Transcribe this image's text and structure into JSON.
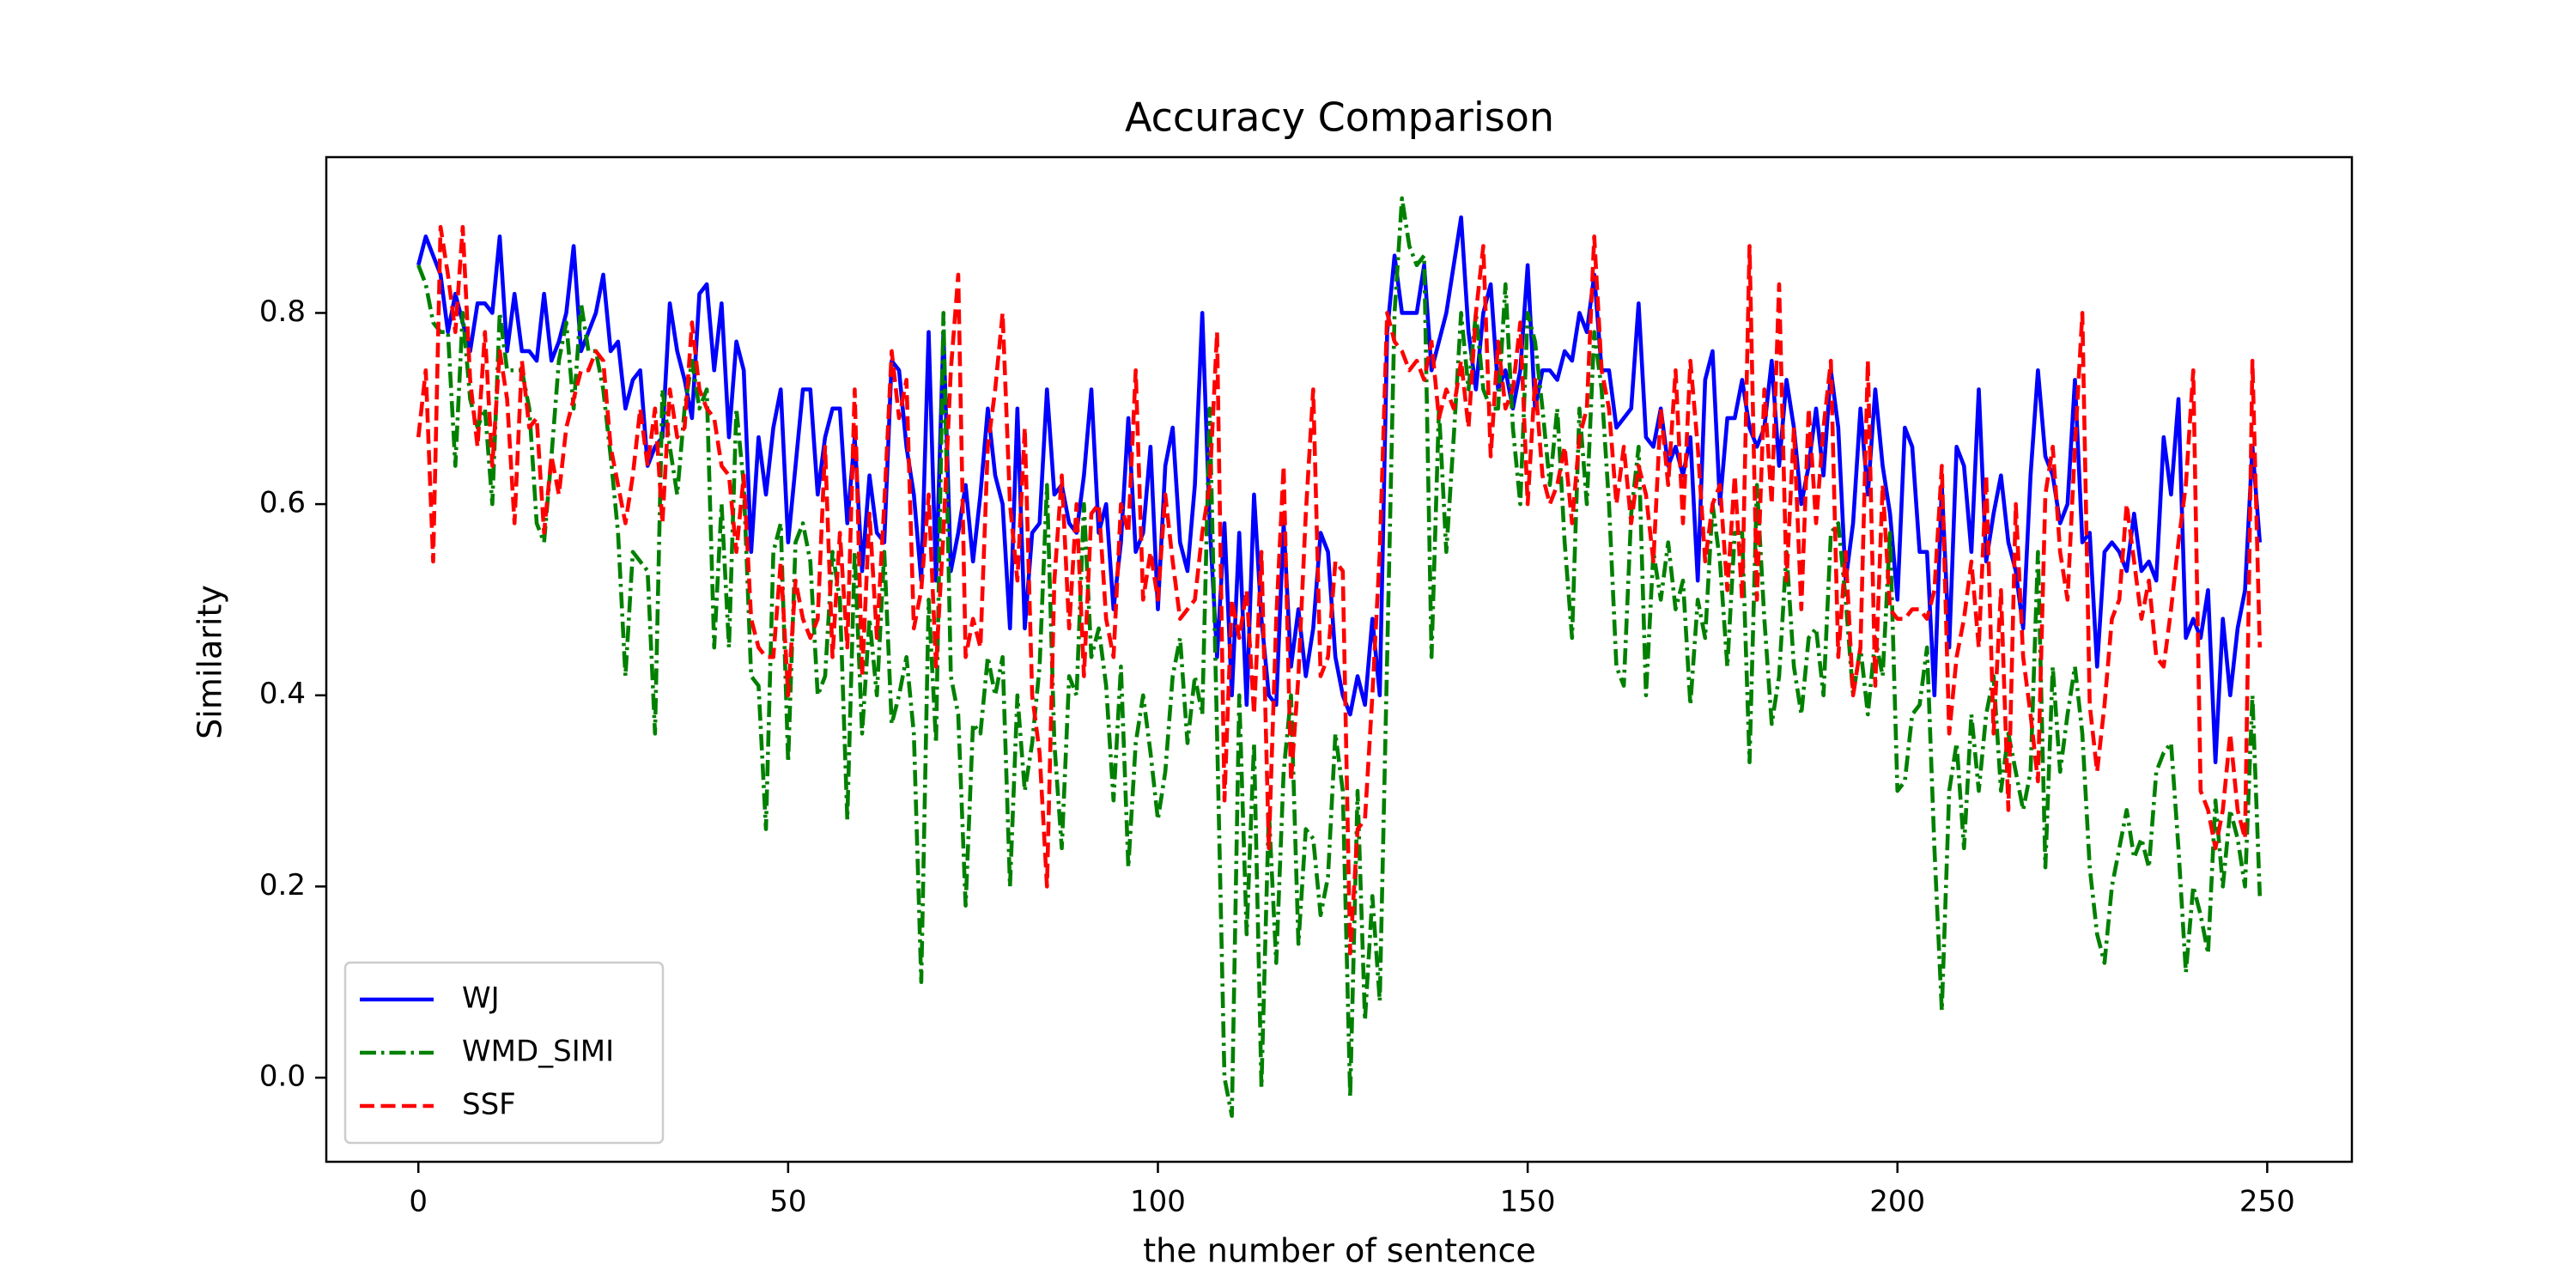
{
  "chart_data": {
    "type": "line",
    "title": "Accuracy Comparison",
    "x_label": "the number of sentence",
    "y_label": "Similarity",
    "xlim": [
      -12.45,
      261.45
    ],
    "ylim": [
      -0.088,
      0.963
    ],
    "xticks": [
      0,
      50,
      100,
      150,
      200,
      250
    ],
    "yticks": [
      {
        "value": 0,
        "label": "0.0"
      },
      0.2,
      0.4,
      0.6,
      0.8
    ],
    "legend": "lower left",
    "x": [
      0,
      1,
      2,
      3,
      4,
      5,
      6,
      7,
      8,
      9,
      10,
      11,
      12,
      13,
      14,
      15,
      16,
      17,
      18,
      19,
      20,
      21,
      22,
      23,
      24,
      25,
      26,
      27,
      28,
      29,
      30,
      31,
      32,
      33,
      34,
      35,
      36,
      37,
      38,
      39,
      40,
      41,
      42,
      43,
      44,
      45,
      46,
      47,
      48,
      49,
      50,
      51,
      52,
      53,
      54,
      55,
      56,
      57,
      58,
      59,
      60,
      61,
      62,
      63,
      64,
      65,
      66,
      67,
      68,
      69,
      70,
      71,
      72,
      73,
      74,
      75,
      76,
      77,
      78,
      79,
      80,
      81,
      82,
      83,
      84,
      85,
      86,
      87,
      88,
      89,
      90,
      91,
      92,
      93,
      94,
      95,
      96,
      97,
      98,
      99,
      100,
      101,
      102,
      103,
      104,
      105,
      106,
      107,
      108,
      109,
      110,
      111,
      112,
      113,
      114,
      115,
      116,
      117,
      118,
      119,
      120,
      121,
      122,
      123,
      124,
      125,
      126,
      127,
      128,
      129,
      130,
      131,
      132,
      133,
      134,
      135,
      136,
      137,
      138,
      139,
      140,
      141,
      142,
      143,
      144,
      145,
      146,
      147,
      148,
      149,
      150,
      151,
      152,
      153,
      154,
      155,
      156,
      157,
      158,
      159,
      160,
      161,
      162,
      163,
      164,
      165,
      166,
      167,
      168,
      169,
      170,
      171,
      172,
      173,
      174,
      175,
      176,
      177,
      178,
      179,
      180,
      181,
      182,
      183,
      184,
      185,
      186,
      187,
      188,
      189,
      190,
      191,
      192,
      193,
      194,
      195,
      196,
      197,
      198,
      199,
      200,
      201,
      202,
      203,
      204,
      205,
      206,
      207,
      208,
      209,
      210,
      211,
      212,
      213,
      214,
      215,
      216,
      217,
      218,
      219,
      220,
      221,
      222,
      223,
      224,
      225,
      226,
      227,
      228,
      229,
      230,
      231,
      232,
      233,
      234,
      235,
      236,
      237,
      238,
      239,
      240,
      241,
      242,
      243,
      244,
      245,
      246,
      247,
      248,
      249
    ],
    "series": [
      {
        "name": "WJ",
        "color": "#0000ff",
        "linestyle": "solid",
        "values": [
          0.85,
          0.88,
          0.86,
          0.84,
          0.78,
          0.82,
          0.79,
          0.76,
          0.81,
          0.81,
          0.8,
          0.88,
          0.76,
          0.82,
          0.76,
          0.76,
          0.75,
          0.82,
          0.75,
          0.77,
          0.8,
          0.87,
          0.76,
          0.78,
          0.8,
          0.84,
          0.76,
          0.77,
          0.7,
          0.73,
          0.74,
          0.64,
          0.66,
          0.67,
          0.81,
          0.76,
          0.73,
          0.69,
          0.82,
          0.83,
          0.74,
          0.81,
          0.67,
          0.77,
          0.74,
          0.55,
          0.67,
          0.61,
          0.68,
          0.72,
          0.56,
          0.64,
          0.72,
          0.72,
          0.61,
          0.67,
          0.7,
          0.7,
          0.58,
          0.67,
          0.53,
          0.63,
          0.57,
          0.56,
          0.75,
          0.74,
          0.66,
          0.61,
          0.52,
          0.78,
          0.52,
          0.78,
          0.53,
          0.57,
          0.62,
          0.54,
          0.61,
          0.7,
          0.63,
          0.6,
          0.47,
          0.7,
          0.47,
          0.57,
          0.58,
          0.72,
          0.61,
          0.62,
          0.58,
          0.57,
          0.63,
          0.72,
          0.57,
          0.6,
          0.49,
          0.56,
          0.69,
          0.55,
          0.57,
          0.66,
          0.49,
          0.64,
          0.68,
          0.56,
          0.53,
          0.62,
          0.8,
          0.58,
          0.44,
          0.58,
          0.4,
          0.57,
          0.39,
          0.61,
          0.48,
          0.4,
          0.39,
          0.58,
          0.43,
          0.49,
          0.42,
          0.47,
          0.57,
          0.55,
          0.44,
          0.4,
          0.38,
          0.42,
          0.39,
          0.48,
          0.4,
          0.78,
          0.86,
          0.8,
          0.8,
          0.8,
          0.85,
          0.74,
          0.77,
          0.8,
          0.85,
          0.9,
          0.78,
          0.72,
          0.8,
          0.83,
          0.72,
          0.74,
          0.7,
          0.74,
          0.85,
          0.7,
          0.74,
          0.74,
          0.73,
          0.76,
          0.75,
          0.8,
          0.78,
          0.84,
          0.74,
          0.74,
          0.68,
          0.69,
          0.7,
          0.81,
          0.67,
          0.66,
          0.7,
          0.64,
          0.66,
          0.63,
          0.67,
          0.52,
          0.73,
          0.76,
          0.6,
          0.69,
          0.69,
          0.73,
          0.68,
          0.66,
          0.68,
          0.75,
          0.64,
          0.73,
          0.68,
          0.6,
          0.64,
          0.7,
          0.63,
          0.74,
          0.68,
          0.52,
          0.58,
          0.7,
          0.61,
          0.72,
          0.64,
          0.59,
          0.5,
          0.68,
          0.66,
          0.55,
          0.55,
          0.4,
          0.62,
          0.45,
          0.66,
          0.64,
          0.55,
          0.72,
          0.54,
          0.59,
          0.63,
          0.56,
          0.53,
          0.47,
          0.63,
          0.74,
          0.65,
          0.63,
          0.58,
          0.6,
          0.73,
          0.56,
          0.57,
          0.43,
          0.55,
          0.56,
          0.55,
          0.53,
          0.59,
          0.53,
          0.54,
          0.52,
          0.67,
          0.61,
          0.71,
          0.46,
          0.48,
          0.46,
          0.51,
          0.33,
          0.48,
          0.4,
          0.47,
          0.51,
          0.66,
          0.56
        ]
      },
      {
        "name": "WMD_SIMI",
        "color": "#008000",
        "linestyle": "dashdot",
        "values": [
          0.85,
          0.83,
          0.79,
          0.78,
          0.78,
          0.64,
          0.8,
          0.71,
          0.68,
          0.7,
          0.6,
          0.8,
          0.74,
          0.74,
          0.74,
          0.7,
          0.58,
          0.56,
          0.65,
          0.75,
          0.79,
          0.7,
          0.81,
          0.76,
          0.76,
          0.72,
          0.65,
          0.57,
          0.42,
          0.55,
          0.54,
          0.53,
          0.36,
          0.72,
          0.66,
          0.61,
          0.7,
          0.75,
          0.7,
          0.72,
          0.45,
          0.6,
          0.45,
          0.7,
          0.62,
          0.42,
          0.41,
          0.26,
          0.55,
          0.58,
          0.33,
          0.56,
          0.58,
          0.54,
          0.4,
          0.42,
          0.55,
          0.5,
          0.27,
          0.55,
          0.36,
          0.48,
          0.4,
          0.55,
          0.37,
          0.4,
          0.44,
          0.36,
          0.1,
          0.5,
          0.35,
          0.8,
          0.42,
          0.38,
          0.18,
          0.37,
          0.36,
          0.44,
          0.4,
          0.44,
          0.2,
          0.4,
          0.3,
          0.35,
          0.43,
          0.62,
          0.35,
          0.24,
          0.42,
          0.4,
          0.6,
          0.44,
          0.47,
          0.41,
          0.29,
          0.43,
          0.22,
          0.35,
          0.4,
          0.34,
          0.27,
          0.32,
          0.42,
          0.46,
          0.35,
          0.42,
          0.38,
          0.7,
          0.36,
          0.0,
          -0.04,
          0.4,
          0.15,
          0.35,
          -0.01,
          0.28,
          0.12,
          0.32,
          0.4,
          0.14,
          0.26,
          0.25,
          0.17,
          0.21,
          0.36,
          0.3,
          -0.02,
          0.3,
          0.06,
          0.19,
          0.08,
          0.44,
          0.8,
          0.92,
          0.87,
          0.85,
          0.86,
          0.44,
          0.7,
          0.55,
          0.67,
          0.8,
          0.72,
          0.8,
          0.72,
          0.7,
          0.7,
          0.83,
          0.68,
          0.6,
          0.8,
          0.77,
          0.7,
          0.62,
          0.7,
          0.56,
          0.46,
          0.7,
          0.6,
          0.78,
          0.72,
          0.6,
          0.43,
          0.41,
          0.59,
          0.66,
          0.4,
          0.55,
          0.5,
          0.56,
          0.49,
          0.52,
          0.39,
          0.5,
          0.46,
          0.6,
          0.54,
          0.43,
          0.57,
          0.57,
          0.33,
          0.62,
          0.48,
          0.37,
          0.42,
          0.55,
          0.43,
          0.38,
          0.46,
          0.47,
          0.4,
          0.57,
          0.58,
          0.5,
          0.4,
          0.45,
          0.38,
          0.46,
          0.42,
          0.57,
          0.3,
          0.31,
          0.38,
          0.39,
          0.45,
          0.24,
          0.07,
          0.3,
          0.35,
          0.24,
          0.38,
          0.3,
          0.38,
          0.42,
          0.3,
          0.36,
          0.32,
          0.28,
          0.32,
          0.55,
          0.22,
          0.43,
          0.32,
          0.38,
          0.43,
          0.36,
          0.22,
          0.15,
          0.12,
          0.2,
          0.24,
          0.28,
          0.23,
          0.25,
          0.22,
          0.32,
          0.34,
          0.35,
          0.24,
          0.11,
          0.2,
          0.17,
          0.13,
          0.29,
          0.2,
          0.28,
          0.25,
          0.2,
          0.4,
          0.19
        ]
      },
      {
        "name": "SSF",
        "color": "#ff0000",
        "linestyle": "dashed",
        "values": [
          0.67,
          0.74,
          0.54,
          0.89,
          0.84,
          0.78,
          0.89,
          0.73,
          0.66,
          0.78,
          0.64,
          0.76,
          0.71,
          0.58,
          0.75,
          0.68,
          0.69,
          0.57,
          0.65,
          0.61,
          0.68,
          0.71,
          0.74,
          0.74,
          0.76,
          0.75,
          0.66,
          0.62,
          0.58,
          0.63,
          0.7,
          0.64,
          0.7,
          0.58,
          0.72,
          0.67,
          0.68,
          0.79,
          0.72,
          0.7,
          0.69,
          0.64,
          0.63,
          0.55,
          0.63,
          0.48,
          0.45,
          0.44,
          0.44,
          0.54,
          0.4,
          0.52,
          0.48,
          0.46,
          0.48,
          0.66,
          0.44,
          0.57,
          0.45,
          0.72,
          0.42,
          0.59,
          0.46,
          0.6,
          0.76,
          0.69,
          0.73,
          0.47,
          0.51,
          0.61,
          0.43,
          0.57,
          0.74,
          0.84,
          0.44,
          0.48,
          0.45,
          0.66,
          0.72,
          0.8,
          0.6,
          0.52,
          0.68,
          0.4,
          0.34,
          0.2,
          0.52,
          0.63,
          0.47,
          0.6,
          0.42,
          0.59,
          0.6,
          0.48,
          0.44,
          0.6,
          0.57,
          0.74,
          0.5,
          0.55,
          0.5,
          0.61,
          0.54,
          0.48,
          0.49,
          0.5,
          0.57,
          0.62,
          0.78,
          0.29,
          0.5,
          0.46,
          0.51,
          0.38,
          0.55,
          0.24,
          0.48,
          0.64,
          0.31,
          0.42,
          0.59,
          0.72,
          0.42,
          0.44,
          0.54,
          0.53,
          0.13,
          0.26,
          0.27,
          0.4,
          0.55,
          0.8,
          0.77,
          0.76,
          0.74,
          0.75,
          0.73,
          0.77,
          0.69,
          0.72,
          0.7,
          0.75,
          0.68,
          0.8,
          0.87,
          0.65,
          0.77,
          0.7,
          0.72,
          0.79,
          0.6,
          0.73,
          0.63,
          0.6,
          0.62,
          0.66,
          0.58,
          0.67,
          0.7,
          0.88,
          0.74,
          0.7,
          0.6,
          0.66,
          0.58,
          0.64,
          0.61,
          0.54,
          0.7,
          0.62,
          0.74,
          0.58,
          0.75,
          0.66,
          0.54,
          0.6,
          0.62,
          0.51,
          0.63,
          0.5,
          0.87,
          0.5,
          0.72,
          0.6,
          0.83,
          0.52,
          0.68,
          0.49,
          0.7,
          0.58,
          0.68,
          0.75,
          0.44,
          0.55,
          0.4,
          0.45,
          0.75,
          0.41,
          0.62,
          0.49,
          0.48,
          0.48,
          0.49,
          0.49,
          0.48,
          0.51,
          0.64,
          0.36,
          0.44,
          0.48,
          0.54,
          0.45,
          0.63,
          0.36,
          0.51,
          0.28,
          0.6,
          0.44,
          0.38,
          0.31,
          0.61,
          0.66,
          0.55,
          0.5,
          0.66,
          0.8,
          0.39,
          0.32,
          0.39,
          0.48,
          0.5,
          0.6,
          0.54,
          0.48,
          0.52,
          0.44,
          0.43,
          0.49,
          0.56,
          0.62,
          0.74,
          0.3,
          0.28,
          0.24,
          0.28,
          0.36,
          0.28,
          0.25,
          0.75,
          0.45
        ]
      }
    ]
  }
}
